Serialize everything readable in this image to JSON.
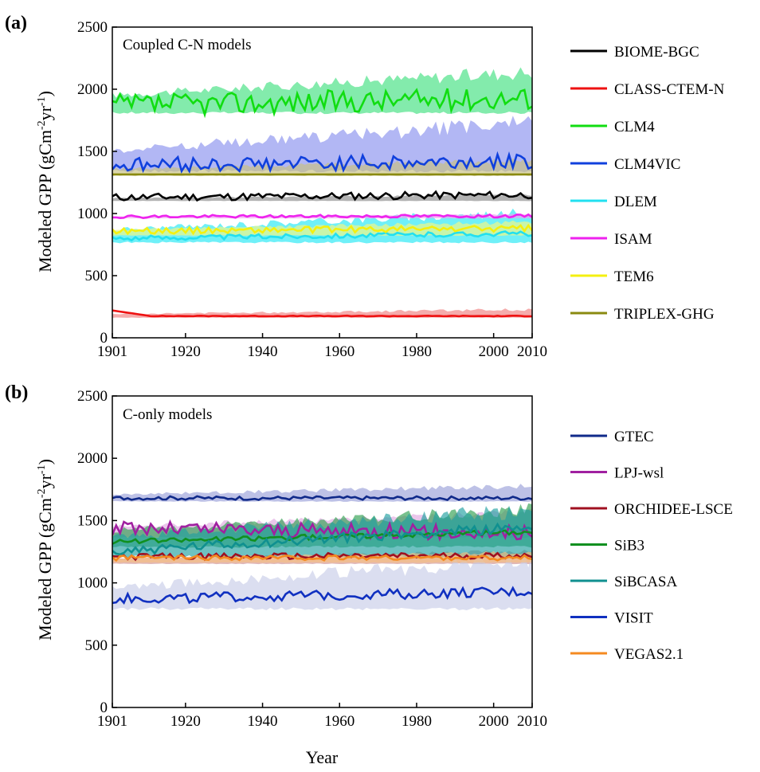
{
  "chart_data": [
    {
      "type": "line",
      "panel_label": "(a)",
      "title": "Coupled C-N models",
      "xlabel": "",
      "ylabel": "Modeled GPP (gCm-2yr-1)",
      "ylabel_main": "Modeled GPP (gCm",
      "ylabel_exp1": "-2",
      "ylabel_mid": "yr",
      "ylabel_exp2": "-1",
      "ylabel_end": ")",
      "xlim": [
        1901,
        2010
      ],
      "ylim": [
        0,
        2500
      ],
      "xticks": [
        "1901",
        "1920",
        "1940",
        "1960",
        "1980",
        "2000",
        "2010"
      ],
      "yticks": [
        "0",
        "500",
        "1000",
        "1500",
        "2000",
        "2500"
      ],
      "legend_position": "right",
      "series": [
        {
          "name": "BIOME-BGC",
          "color": "#000000",
          "base": 1130,
          "amp": 30,
          "trend": 20,
          "band_lo": 1100,
          "band_hi": 1160,
          "band_color": "#888888"
        },
        {
          "name": "CLASS-CTEM-N",
          "color": "#ee1111",
          "base": 175,
          "amp": 3,
          "trend": 0,
          "band_lo": 160,
          "band_hi": 240,
          "band_color": "#f08080",
          "start": 220
        },
        {
          "name": "CLM4",
          "color": "#11dd11",
          "base": 1870,
          "amp": 90,
          "trend": 60,
          "band_lo": 1800,
          "band_hi": 2200,
          "band_color": "#40e080"
        },
        {
          "name": "CLM4VIC",
          "color": "#1040dd",
          "base": 1390,
          "amp": 60,
          "trend": 30,
          "band_lo": 1330,
          "band_hi": 1800,
          "band_color": "#8890ee"
        },
        {
          "name": "DLEM",
          "color": "#22e0f0",
          "base": 800,
          "amp": 20,
          "trend": 40,
          "band_lo": 760,
          "band_hi": 1050,
          "band_color": "#22e8f4"
        },
        {
          "name": "ISAM",
          "color": "#ee22ee",
          "base": 975,
          "amp": 12,
          "trend": 5,
          "band_lo": 960,
          "band_hi": 1000,
          "band_color": "#f0a0f0"
        },
        {
          "name": "TEM6",
          "color": "#f4f010",
          "base": 860,
          "amp": 25,
          "trend": 20,
          "band_lo": 820,
          "band_hi": 950,
          "band_color": "#f8f880"
        },
        {
          "name": "TRIPLEX-GHG",
          "color": "#8a8a10",
          "base": 1315,
          "amp": 0,
          "trend": 0,
          "band_lo": 1300,
          "band_hi": 1450,
          "band_color": "#c8c080"
        }
      ]
    },
    {
      "type": "line",
      "panel_label": "(b)",
      "title": "C-only models",
      "xlabel": "Year",
      "ylabel": "Modeled GPP (gCm-2yr-1)",
      "ylabel_main": "Modeled GPP (gCm",
      "ylabel_exp1": "-2",
      "ylabel_mid": "yr",
      "ylabel_exp2": "-1",
      "ylabel_end": ")",
      "xlim": [
        1901,
        2010
      ],
      "ylim": [
        0,
        2500
      ],
      "xticks": [
        "1901",
        "1920",
        "1940",
        "1960",
        "1980",
        "2000",
        "2010"
      ],
      "yticks": [
        "0",
        "500",
        "1000",
        "1500",
        "2000",
        "2500"
      ],
      "legend_position": "right",
      "series": [
        {
          "name": "GTEC",
          "color": "#102a8a",
          "base": 1680,
          "amp": 15,
          "trend": 0,
          "band_lo": 1650,
          "band_hi": 1800,
          "band_color": "#9aa0d8"
        },
        {
          "name": "LPJ-wsl",
          "color": "#a020a0",
          "base": 1440,
          "amp": 60,
          "trend": -40,
          "band_lo": 1360,
          "band_hi": 1600,
          "band_color": "#e0a8e0"
        },
        {
          "name": "ORCHIDEE-LSCE",
          "color": "#a01020",
          "base": 1210,
          "amp": 25,
          "trend": 10,
          "band_lo": 1150,
          "band_hi": 1270,
          "band_color": "#d09090"
        },
        {
          "name": "SiB3",
          "color": "#109020",
          "base": 1330,
          "amp": 20,
          "trend": 80,
          "band_lo": 1280,
          "band_hi": 1640,
          "band_color": "#30a050"
        },
        {
          "name": "SiBCASA",
          "color": "#109090",
          "base": 1250,
          "amp": 40,
          "trend": 200,
          "band_lo": 1200,
          "band_hi": 1650,
          "band_color": "#20a0a0"
        },
        {
          "name": "VISIT",
          "color": "#1030c0",
          "base": 870,
          "amp": 40,
          "trend": 60,
          "band_lo": 780,
          "band_hi": 1250,
          "band_color": "#c8cce8"
        },
        {
          "name": "VEGAS2.1",
          "color": "#f48a20",
          "base": 1200,
          "amp": 20,
          "trend": 0,
          "band_lo": 1160,
          "band_hi": 1260,
          "band_color": "#f8c080"
        }
      ]
    }
  ]
}
